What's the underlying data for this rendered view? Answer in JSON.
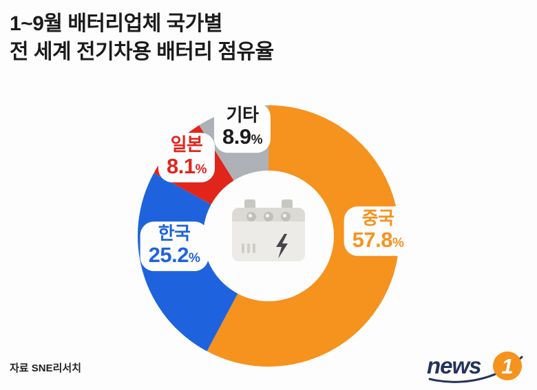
{
  "title": {
    "line1": "1~9월 배터리업체 국가별",
    "line2": "전 세계 전기차용 배터리 점유율"
  },
  "source": "자료 SNE리서치",
  "logo": {
    "text": "news",
    "badge": "1"
  },
  "colors": {
    "china_orange": "#f6921e",
    "korea_blue": "#1e63dd",
    "japan_red": "#e1251b",
    "others_gray": "#aeb2b6",
    "title_black": "#1b1b1b",
    "logo_navy": "#22345c"
  },
  "chart_data": {
    "type": "pie",
    "title": "1~9월 배터리업체 국가별 전 세계 전기차용 배터리 점유율",
    "unit": "%",
    "donut": {
      "start_angle_deg": -90,
      "clockwise": true,
      "inner_ratio": 0.5,
      "center_icon": "battery-icon"
    },
    "segments": [
      {
        "label": "중국",
        "value": 57.8,
        "color": "#f6921e",
        "text_color": "#f6921e"
      },
      {
        "label": "한국",
        "value": 25.2,
        "color": "#1e63dd",
        "text_color": "#1e63dd"
      },
      {
        "label": "일본",
        "value": 8.1,
        "color": "#e1251b",
        "text_color": "#e1251b"
      },
      {
        "label": "기타",
        "value": 8.9,
        "color": "#aeb2b6",
        "text_color": "#1b1b1b"
      }
    ]
  }
}
